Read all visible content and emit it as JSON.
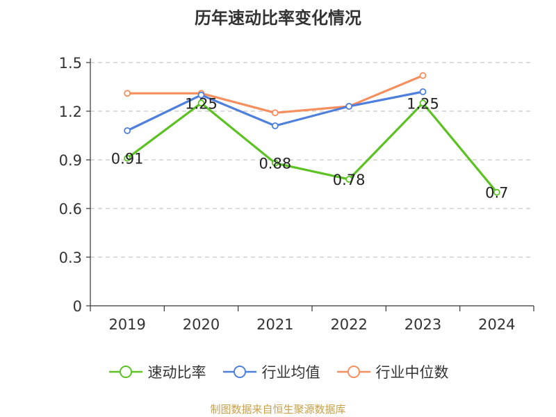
{
  "chart_data": {
    "type": "line",
    "title": "历年速动比率变化情况",
    "categories": [
      "2019",
      "2020",
      "2021",
      "2022",
      "2023",
      "2024"
    ],
    "yticks": [
      "0",
      "0.3",
      "0.6",
      "0.9",
      "1.2",
      "1.5"
    ],
    "ylim": [
      0,
      1.5
    ],
    "grid": true,
    "legend_position": "bottom",
    "series": [
      {
        "name": "速动比率",
        "color": "#5cc123",
        "values": [
          0.91,
          1.25,
          0.88,
          0.78,
          1.25,
          0.7
        ],
        "labels": [
          "0.91",
          "1.25",
          "0.88",
          "0.78",
          "1.25",
          "0.7"
        ]
      },
      {
        "name": "行业均值",
        "color": "#4e7fdc",
        "values": [
          1.08,
          1.3,
          1.11,
          1.23,
          1.32,
          null
        ]
      },
      {
        "name": "行业中位数",
        "color": "#f68e5e",
        "values": [
          1.31,
          1.31,
          1.19,
          1.23,
          1.42,
          null
        ]
      }
    ]
  },
  "footer": "制图数据来自恒生聚源数据库"
}
